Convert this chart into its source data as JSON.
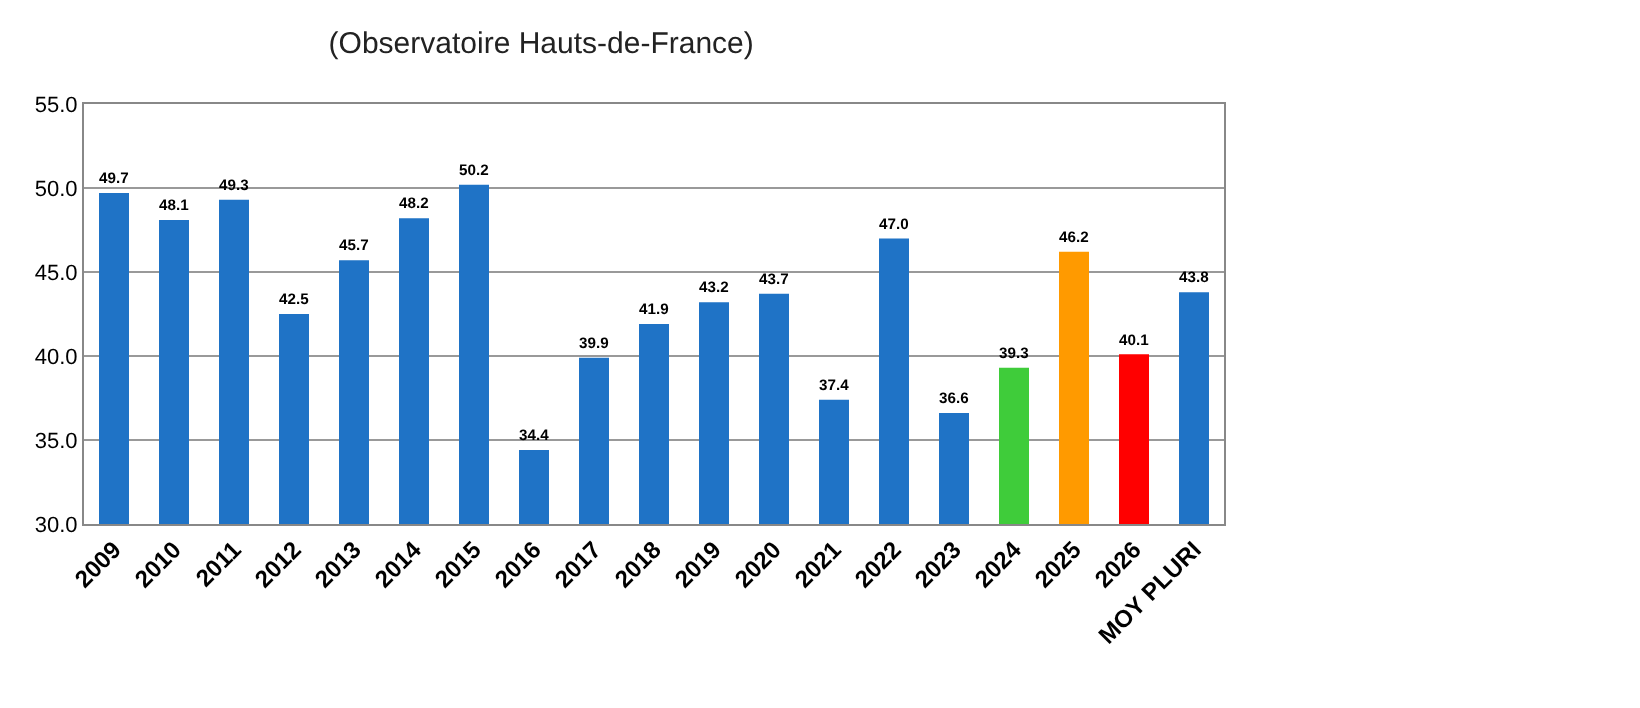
{
  "chart_data": {
    "type": "bar",
    "title": "(Observatoire Hauts-de-France)",
    "categories": [
      "2009",
      "2010",
      "2011",
      "2012",
      "2013",
      "2014",
      "2015",
      "2016",
      "2017",
      "2018",
      "2019",
      "2020",
      "2021",
      "2022",
      "2023",
      "2024",
      "2025",
      "2026",
      "MOY PLURI"
    ],
    "values": [
      49.7,
      48.1,
      49.3,
      42.5,
      45.7,
      48.2,
      50.2,
      34.4,
      39.9,
      41.9,
      43.2,
      43.7,
      37.4,
      47.0,
      36.6,
      39.3,
      46.2,
      40.1,
      43.8
    ],
    "value_labels": [
      "49.7",
      "48.1",
      "49.3",
      "42.5",
      "45.7",
      "48.2",
      "50.2",
      "34.4",
      "39.9",
      "41.9",
      "43.2",
      "43.7",
      "37.4",
      "47.0",
      "36.6",
      "39.3",
      "46.2",
      "40.1",
      "43.8"
    ],
    "colors": [
      "#1f73c6",
      "#1f73c6",
      "#1f73c6",
      "#1f73c6",
      "#1f73c6",
      "#1f73c6",
      "#1f73c6",
      "#1f73c6",
      "#1f73c6",
      "#1f73c6",
      "#1f73c6",
      "#1f73c6",
      "#1f73c6",
      "#1f73c6",
      "#1f73c6",
      "#3fcc3a",
      "#ff9a00",
      "#ff0000",
      "#1f73c6"
    ],
    "ylim": [
      30,
      55
    ],
    "yticks": [
      {
        "value": 30,
        "label": "30.0"
      },
      {
        "value": 35,
        "label": "35.0"
      },
      {
        "value": 40,
        "label": "40.0"
      },
      {
        "value": 45,
        "label": "45.0"
      },
      {
        "value": 50,
        "label": "50.0"
      },
      {
        "value": 55,
        "label": "55.0"
      }
    ],
    "grid": "y"
  }
}
